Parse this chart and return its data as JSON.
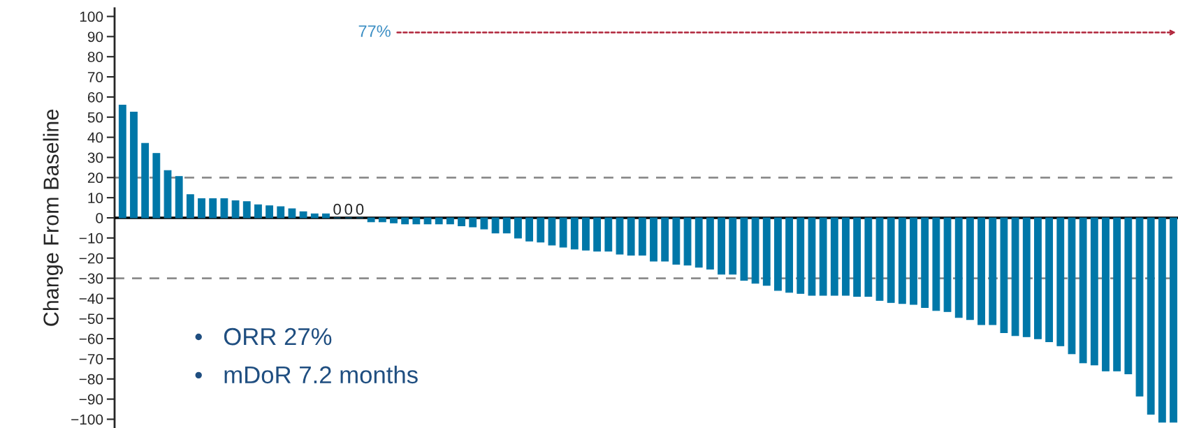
{
  "chart_data": {
    "type": "bar",
    "ylabel": "Change From Baseline",
    "categories": [
      null,
      null,
      null,
      null,
      null,
      null,
      null,
      null,
      null,
      null,
      null,
      null,
      null,
      null,
      null,
      null,
      null,
      null,
      null,
      null,
      null,
      null,
      null,
      null,
      null,
      null,
      null,
      null,
      null,
      null,
      null,
      null,
      null,
      null,
      null,
      null,
      null,
      null,
      null,
      null,
      null,
      null,
      null,
      null,
      null,
      null,
      null,
      null,
      null,
      null,
      null,
      null,
      null,
      null,
      null,
      null,
      null,
      null,
      null,
      null,
      null,
      null,
      null,
      null,
      null,
      null,
      null,
      null,
      null,
      null,
      null,
      null,
      null,
      null,
      null,
      null,
      null,
      null,
      null,
      null,
      null,
      null,
      null,
      null,
      null,
      null,
      null,
      null,
      null,
      null,
      null,
      null,
      null,
      null
    ],
    "values": [
      56,
      52.5,
      37,
      32,
      23.5,
      20.5,
      11.5,
      9.5,
      9.5,
      9.5,
      8.5,
      8,
      6.5,
      6,
      5.5,
      4.5,
      3,
      2,
      2,
      0,
      0,
      0,
      -2,
      -2,
      -2.5,
      -3,
      -3,
      -3,
      -3,
      -3,
      -4,
      -4.5,
      -5.5,
      -7.5,
      -7.5,
      -10,
      -11.5,
      -12,
      -13.5,
      -14.5,
      -15.5,
      -16,
      -16.5,
      -16.5,
      -18,
      -18.5,
      -18.5,
      -21.5,
      -21.5,
      -23,
      -23.5,
      -24.5,
      -25.5,
      -28,
      -28,
      -31,
      -32.5,
      -33.5,
      -36,
      -37,
      -37.5,
      -38.5,
      -38.5,
      -38.5,
      -38.5,
      -39,
      -39,
      -41,
      -42,
      -42.5,
      -43,
      -44.5,
      -46,
      -46.5,
      -49.5,
      -50.5,
      -53,
      -53,
      -57,
      -58.5,
      -59,
      -60,
      -61.5,
      -63.5,
      -67.5,
      -72,
      -73,
      -76,
      -76,
      -77.5,
      -88.5,
      -97.5,
      -101.5,
      -101.5
    ],
    "value_labels": [
      null,
      null,
      null,
      null,
      null,
      null,
      null,
      null,
      null,
      null,
      null,
      null,
      null,
      null,
      null,
      null,
      null,
      null,
      null,
      "0",
      "0",
      "0",
      null,
      null,
      null,
      null,
      null,
      null,
      null,
      null,
      null,
      null,
      null,
      null,
      null,
      null,
      null,
      null,
      null,
      null,
      null,
      null,
      null,
      null,
      null,
      null,
      null,
      null,
      null,
      null,
      null,
      null,
      null,
      null,
      null,
      null,
      null,
      null,
      null,
      null,
      null,
      null,
      null,
      null,
      null,
      null,
      null,
      null,
      null,
      null,
      null,
      null,
      null,
      null,
      null,
      null,
      null,
      null,
      null,
      null,
      null,
      null,
      null,
      null,
      null,
      null,
      null,
      null,
      null,
      null,
      null,
      null,
      null,
      null
    ],
    "color": "#0077a8",
    "ylim": [
      -104,
      104
    ],
    "yticks": [
      100,
      90,
      80,
      70,
      60,
      50,
      40,
      30,
      20,
      10,
      0,
      {
        "value": -10,
        "label": "−10"
      },
      {
        "value": -20,
        "label": "−20"
      },
      {
        "value": -30,
        "label": "−30"
      },
      {
        "value": -40,
        "label": "−40"
      },
      {
        "value": -50,
        "label": "−50"
      },
      {
        "value": -60,
        "label": "−60"
      },
      {
        "value": -70,
        "label": "−70"
      },
      {
        "value": -80,
        "label": "−80"
      },
      {
        "value": -90,
        "label": "−90"
      },
      {
        "value": -100,
        "label": "−100"
      }
    ],
    "ref_lines": [
      {
        "axis": "y",
        "value": 20,
        "color": "#8c8c8c",
        "line_style": "dashed"
      },
      {
        "axis": "y",
        "value": -30,
        "color": "#8c8c8c",
        "line_style": "dashed"
      }
    ],
    "annotations": [
      "77%",
      "•   ORR 27%",
      "•   mDoR 7.2 months"
    ],
    "tick_labels": "y",
    "grid": false
  }
}
